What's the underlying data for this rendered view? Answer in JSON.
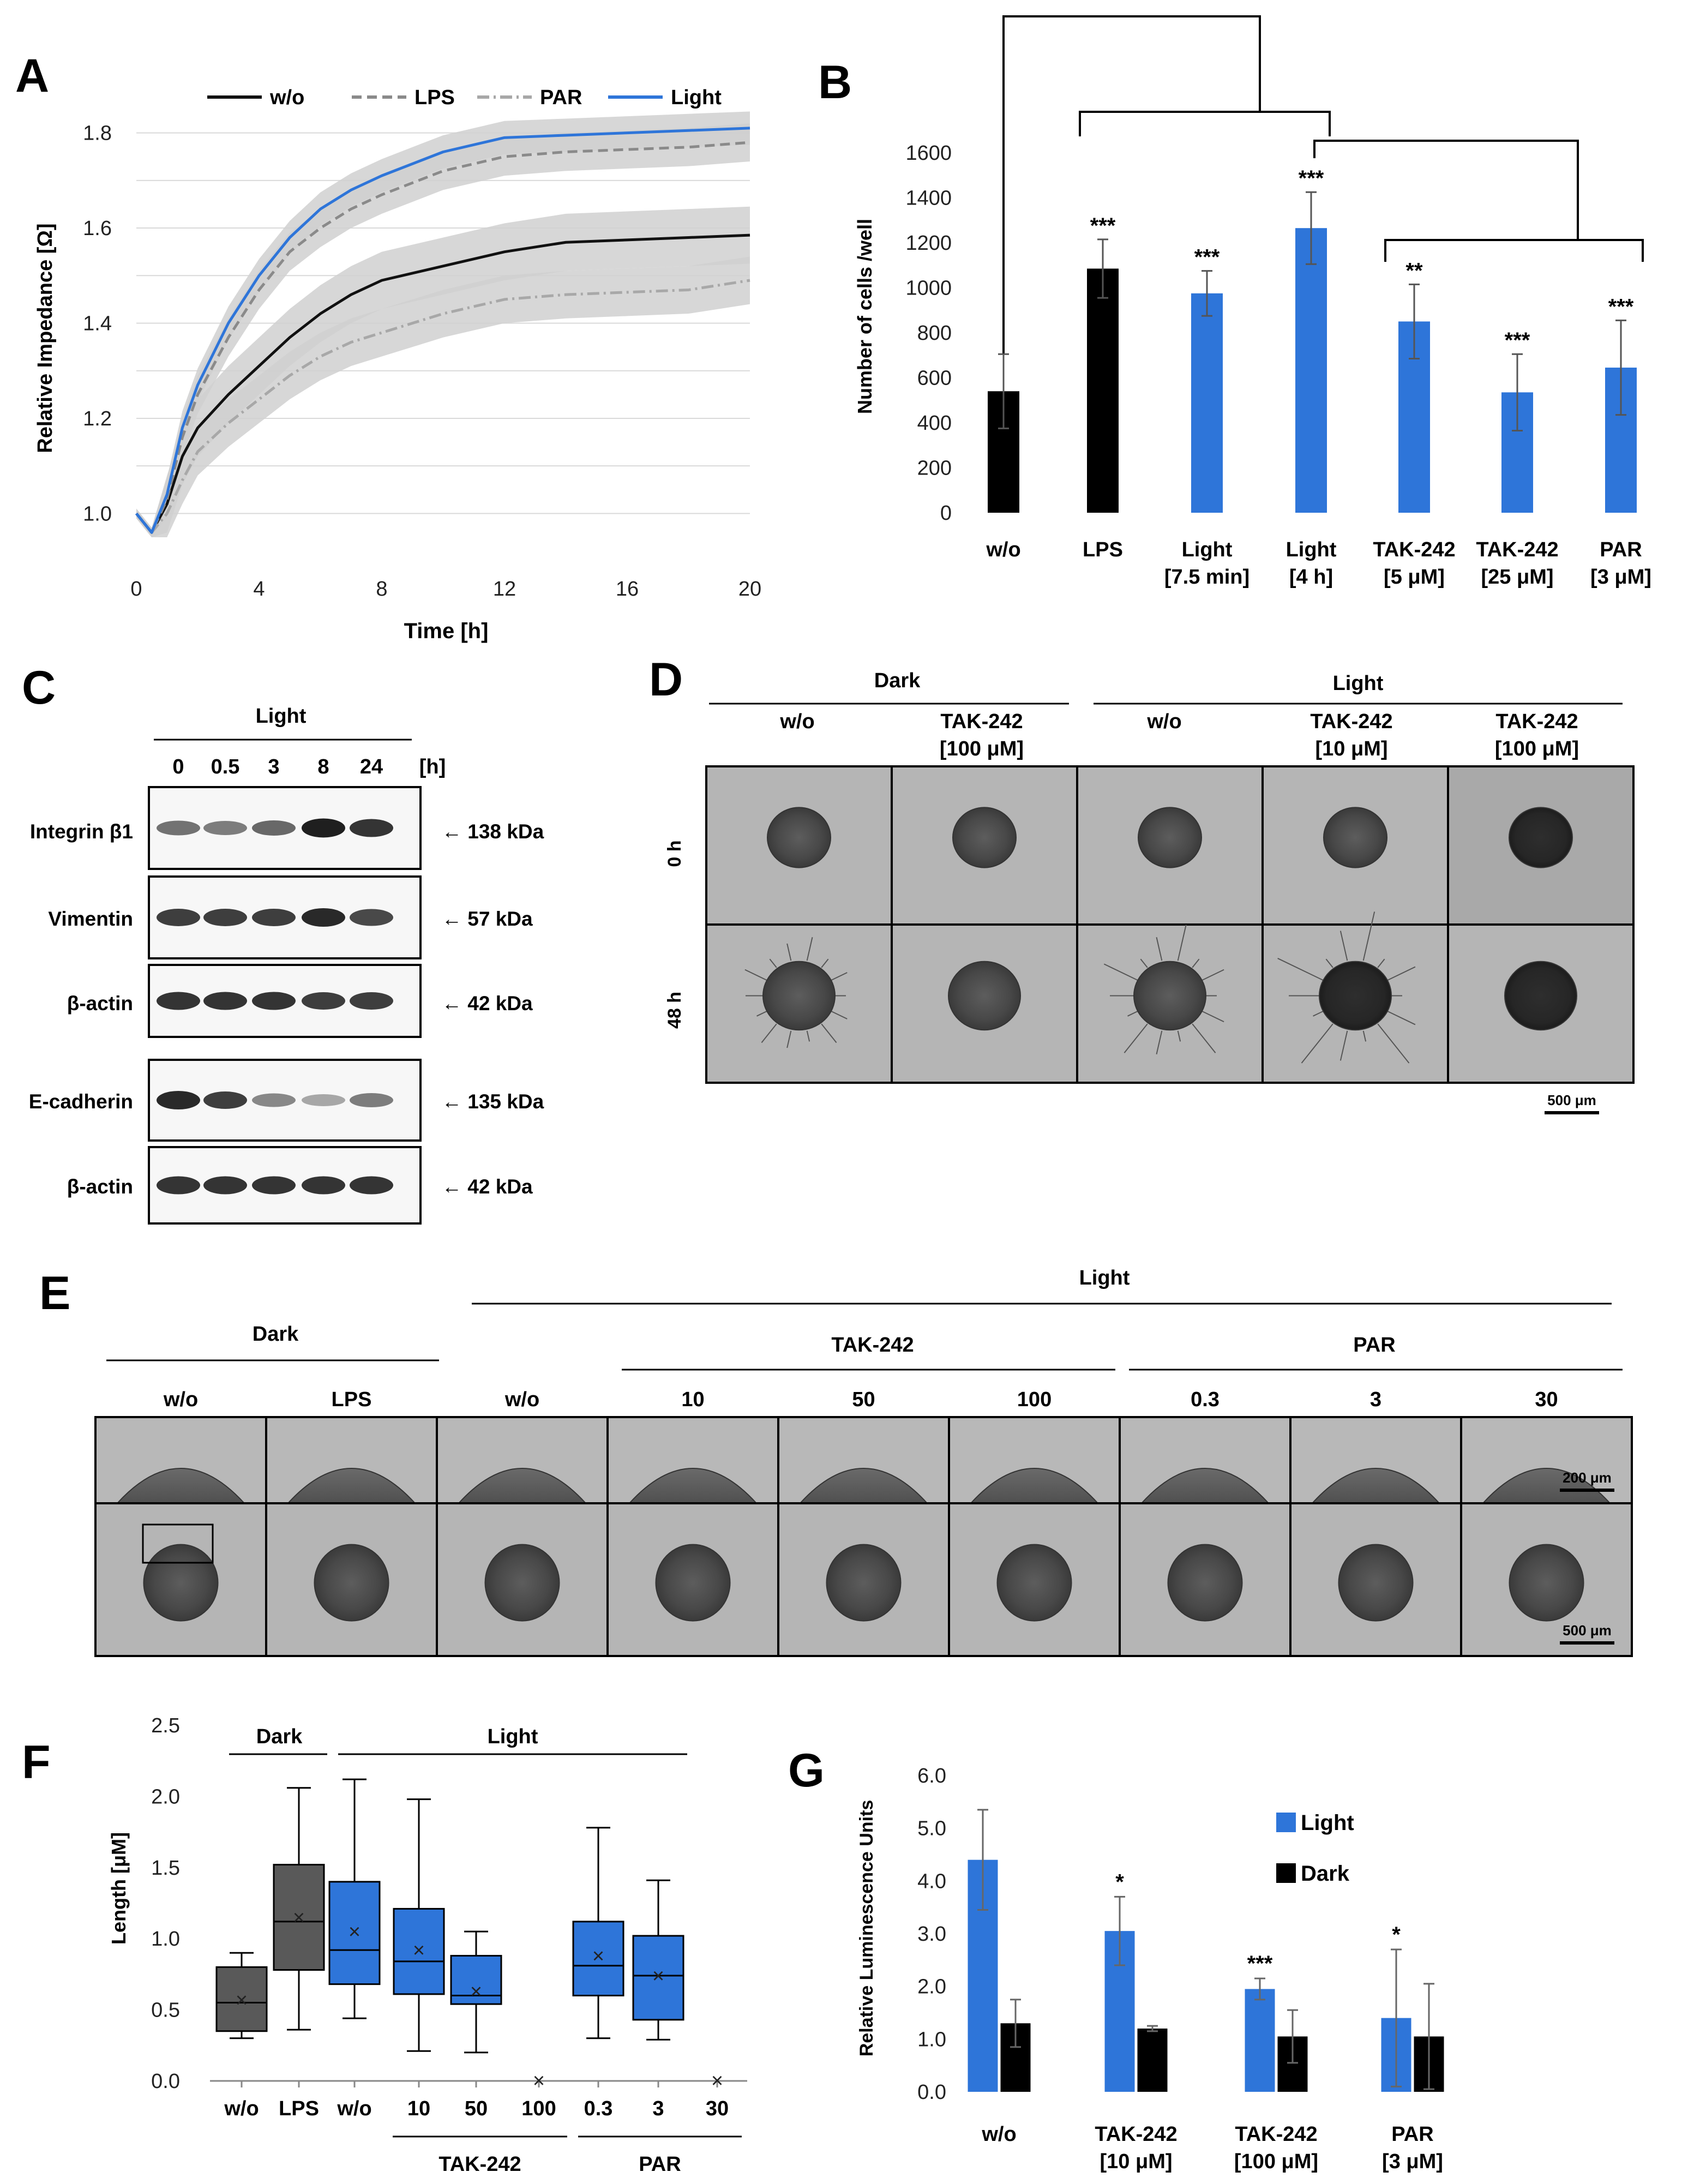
{
  "panels": {
    "A": "A",
    "B": "B",
    "C": "C",
    "D": "D",
    "E": "E",
    "F": "F",
    "G": "G"
  },
  "colors": {
    "blue": "#2e75d9",
    "black": "#000000",
    "grey": "#888888",
    "band": "#d0d0d0"
  },
  "chart_data": [
    {
      "id": "A",
      "type": "line",
      "title": "",
      "xlabel": "Time [h]",
      "ylabel": "Relative Impedance [Ω]",
      "xlim": [
        0,
        20
      ],
      "ylim": [
        0.95,
        1.85
      ],
      "xticks": [
        0,
        4,
        8,
        12,
        16,
        20
      ],
      "yticks": [
        1.0,
        1.2,
        1.4,
        1.6,
        1.8
      ],
      "ytick_labels": [
        "1.0",
        "1.2",
        "1.4",
        "1.6",
        "1.8"
      ],
      "legend": [
        "w/o",
        "LPS",
        "PAR",
        "Light"
      ],
      "series": [
        {
          "name": "w/o",
          "x": [
            0,
            0.5,
            1,
            1.5,
            2,
            3,
            4,
            5,
            6,
            7,
            8,
            10,
            12,
            14,
            16,
            18,
            20
          ],
          "values": [
            1.0,
            0.96,
            1.02,
            1.12,
            1.18,
            1.25,
            1.31,
            1.37,
            1.42,
            1.46,
            1.49,
            1.52,
            1.55,
            1.57,
            1.575,
            1.58,
            1.585
          ]
        },
        {
          "name": "LPS",
          "x": [
            0,
            0.5,
            1,
            1.5,
            2,
            3,
            4,
            5,
            6,
            7,
            8,
            10,
            12,
            14,
            16,
            18,
            20
          ],
          "values": [
            1.0,
            0.96,
            1.03,
            1.16,
            1.25,
            1.37,
            1.47,
            1.55,
            1.6,
            1.64,
            1.67,
            1.72,
            1.75,
            1.76,
            1.765,
            1.77,
            1.78
          ]
        },
        {
          "name": "PAR",
          "x": [
            0,
            0.5,
            1,
            1.5,
            2,
            3,
            4,
            5,
            6,
            7,
            8,
            10,
            12,
            14,
            16,
            18,
            20
          ],
          "values": [
            1.0,
            0.96,
            1.0,
            1.07,
            1.13,
            1.19,
            1.24,
            1.29,
            1.33,
            1.36,
            1.38,
            1.42,
            1.45,
            1.46,
            1.465,
            1.47,
            1.49
          ]
        },
        {
          "name": "Light",
          "x": [
            0,
            0.5,
            1,
            1.5,
            2,
            3,
            4,
            5,
            6,
            7,
            8,
            10,
            12,
            14,
            16,
            18,
            20
          ],
          "values": [
            1.0,
            0.96,
            1.04,
            1.18,
            1.27,
            1.4,
            1.5,
            1.58,
            1.64,
            1.68,
            1.71,
            1.76,
            1.79,
            1.795,
            1.8,
            1.805,
            1.81
          ]
        }
      ]
    },
    {
      "id": "B",
      "type": "bar",
      "title": "",
      "xlabel": "",
      "ylabel": "Number of cells /well",
      "ylim": [
        0,
        1600
      ],
      "yticks": [
        0,
        200,
        400,
        600,
        800,
        1000,
        1200,
        1400,
        1600
      ],
      "categories": [
        {
          "l1": "w/o",
          "l2": ""
        },
        {
          "l1": "LPS",
          "l2": ""
        },
        {
          "l1": "Light",
          "l2": "[7.5 min]"
        },
        {
          "l1": "Light",
          "l2": "[4 h]"
        },
        {
          "l1": "TAK-242",
          "l2": "[5 μM]"
        },
        {
          "l1": "TAK-242",
          "l2": "[25 μM]"
        },
        {
          "l1": "PAR",
          "l2": "[3 μM]"
        }
      ],
      "values": [
        540,
        1085,
        975,
        1265,
        850,
        535,
        645
      ],
      "errors": [
        165,
        130,
        100,
        160,
        165,
        170,
        210
      ],
      "colors": [
        "black",
        "black",
        "blue",
        "blue",
        "blue",
        "blue",
        "blue"
      ],
      "significance": [
        "",
        "***",
        "***",
        "***",
        "**",
        "***",
        "***"
      ]
    },
    {
      "id": "F",
      "type": "box",
      "title": "",
      "xlabel": "",
      "ylabel": "Length [μM]",
      "ylim": [
        0,
        2.5
      ],
      "yticks": [
        0.0,
        0.5,
        1.0,
        1.5,
        2.0,
        2.5
      ],
      "ytick_labels": [
        "0.0",
        "0.5",
        "1.0",
        "1.5",
        "2.0",
        "2.5"
      ],
      "group_labels": {
        "dark": "Dark",
        "light": "Light",
        "tak": "TAK-242",
        "par": "PAR"
      },
      "categories": [
        "w/o",
        "LPS",
        "w/o",
        "10",
        "50",
        "100",
        "0.3",
        "3",
        "30"
      ],
      "boxes": [
        {
          "min": 0.3,
          "q1": 0.35,
          "median": 0.55,
          "q3": 0.8,
          "max": 0.9,
          "mean": 0.57,
          "color": "dark"
        },
        {
          "min": 0.36,
          "q1": 0.78,
          "median": 1.12,
          "q3": 1.52,
          "max": 2.06,
          "mean": 1.15,
          "color": "dark"
        },
        {
          "min": 0.44,
          "q1": 0.68,
          "median": 0.92,
          "q3": 1.4,
          "max": 2.12,
          "mean": 1.05,
          "color": "blue"
        },
        {
          "min": 0.21,
          "q1": 0.61,
          "median": 0.84,
          "q3": 1.21,
          "max": 1.98,
          "mean": 0.92,
          "color": "blue"
        },
        {
          "min": 0.2,
          "q1": 0.54,
          "median": 0.6,
          "q3": 0.88,
          "max": 1.05,
          "mean": 0.63,
          "color": "blue"
        },
        {
          "mean": 0.0,
          "color": "none"
        },
        {
          "min": 0.3,
          "q1": 0.6,
          "median": 0.81,
          "q3": 1.12,
          "max": 1.78,
          "mean": 0.88,
          "color": "blue"
        },
        {
          "min": 0.29,
          "q1": 0.43,
          "median": 0.74,
          "q3": 1.02,
          "max": 1.41,
          "mean": 0.74,
          "color": "blue"
        },
        {
          "mean": 0.0,
          "color": "none"
        }
      ]
    },
    {
      "id": "G",
      "type": "bar",
      "title": "",
      "xlabel": "",
      "ylabel": "Relative Luminescence Units",
      "ylim": [
        0,
        6.0
      ],
      "yticks": [
        0.0,
        1.0,
        2.0,
        3.0,
        4.0,
        5.0,
        6.0
      ],
      "ytick_labels": [
        "0.0",
        "1.0",
        "2.0",
        "3.0",
        "4.0",
        "5.0",
        "6.0"
      ],
      "legend": [
        "Light",
        "Dark"
      ],
      "categories": [
        {
          "l1": "w/o",
          "l2": ""
        },
        {
          "l1": "TAK-242",
          "l2": "[10 μM]"
        },
        {
          "l1": "TAK-242",
          "l2": "[100 μM]"
        },
        {
          "l1": "PAR",
          "l2": "[3 μM]"
        }
      ],
      "series": [
        {
          "name": "Light",
          "values": [
            4.4,
            3.05,
            1.95,
            1.4
          ],
          "errors": [
            0.95,
            0.65,
            0.2,
            1.3
          ]
        },
        {
          "name": "Dark",
          "values": [
            1.3,
            1.2,
            1.05,
            1.05
          ],
          "errors": [
            0.45,
            0.05,
            0.5,
            1.0
          ]
        }
      ],
      "significance": [
        "",
        "*",
        "***",
        "*"
      ]
    }
  ],
  "blotC": {
    "header": "Light",
    "lanes": [
      "0",
      "0.5",
      "3",
      "8",
      "24"
    ],
    "unit": "[h]",
    "rows": [
      {
        "name": "Integrin β1",
        "size": "← 138 kDa",
        "intensity": [
          0.55,
          0.5,
          0.6,
          0.95,
          0.85
        ]
      },
      {
        "name": "Vimentin",
        "size": "← 57 kDa",
        "intensity": [
          0.8,
          0.8,
          0.8,
          0.9,
          0.75
        ]
      },
      {
        "name": "β-actin",
        "size": "← 42 kDa",
        "intensity": [
          0.85,
          0.85,
          0.85,
          0.8,
          0.8
        ]
      },
      {
        "name": "E-cadherin",
        "size": "← 135 kDa",
        "intensity": [
          0.9,
          0.8,
          0.45,
          0.3,
          0.5
        ]
      },
      {
        "name": "β-actin",
        "size": "← 42 kDa",
        "intensity": [
          0.85,
          0.85,
          0.85,
          0.85,
          0.85
        ]
      }
    ]
  },
  "panelD": {
    "group_dark": "Dark",
    "group_light": "Light",
    "columns": [
      {
        "l1": "w/o",
        "l2": ""
      },
      {
        "l1": "TAK-242",
        "l2": "[100 μM]"
      },
      {
        "l1": "w/o",
        "l2": ""
      },
      {
        "l1": "TAK-242",
        "l2": "[10 μM]"
      },
      {
        "l1": "TAK-242",
        "l2": "[100 μM]"
      }
    ],
    "rows": [
      "0 h",
      "48 h"
    ],
    "scale": "500 μm"
  },
  "panelE": {
    "group_dark": "Dark",
    "group_light": "Light",
    "group_tak": "TAK-242",
    "group_par": "PAR",
    "columns": [
      "w/o",
      "LPS",
      "w/o",
      "10",
      "50",
      "100",
      "0.3",
      "3",
      "30"
    ],
    "scale_top": "200 μm",
    "scale_bottom": "500 μm"
  }
}
